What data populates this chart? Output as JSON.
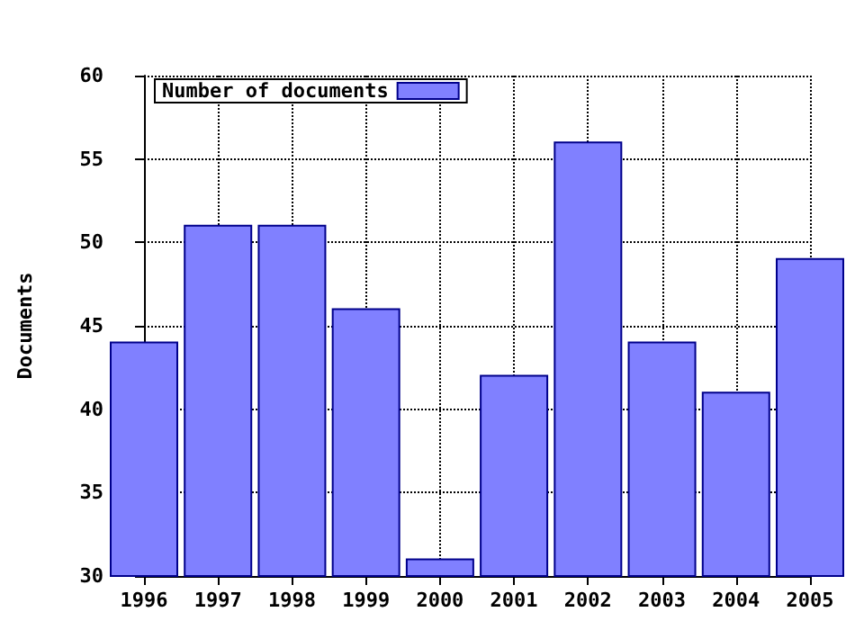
{
  "chart_data": {
    "type": "bar",
    "ylabel": "Documents",
    "x": [
      1996,
      1997,
      1998,
      1999,
      2000,
      2001,
      2002,
      2003,
      2004,
      2005
    ],
    "series": [
      {
        "name": "Number of documents",
        "color": "#8080ff",
        "values": [
          44,
          51,
          51,
          46,
          31,
          42,
          56,
          44,
          41,
          49
        ]
      }
    ],
    "xlim": [
      1996,
      2005
    ],
    "xticks": [
      1996,
      1997,
      1998,
      1999,
      2000,
      2001,
      2002,
      2003,
      2004,
      2005
    ],
    "ylim": [
      30,
      60
    ],
    "yticks": [
      30,
      35,
      40,
      45,
      50,
      55,
      60
    ],
    "grid": true,
    "legend": "top left",
    "line_style": "dotted"
  }
}
